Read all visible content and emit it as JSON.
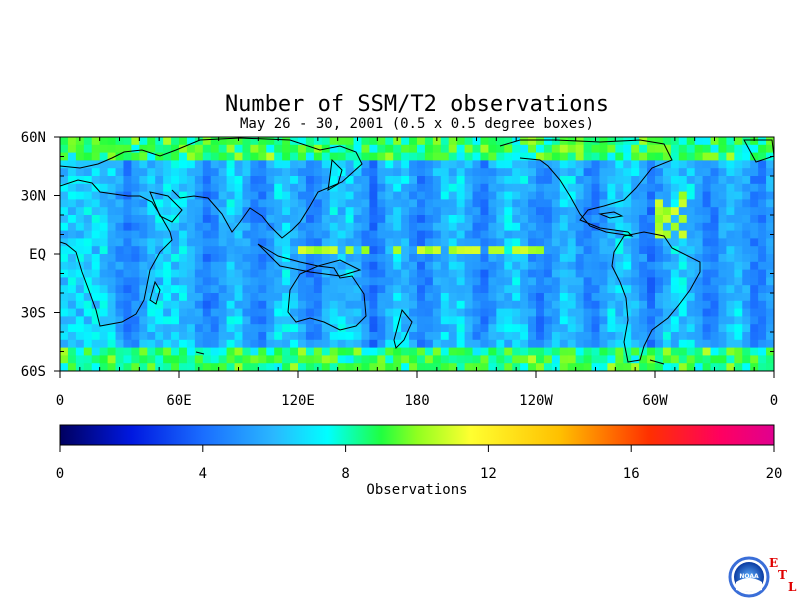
{
  "chart_data": {
    "type": "heatmap",
    "title": "Number of SSM/T2 observations",
    "subtitle": "May 26 - 30, 2001 (0.5 x 0.5 degree boxes)",
    "x_ticks": [
      "0",
      "60E",
      "120E",
      "180",
      "120W",
      "60W",
      "0"
    ],
    "y_ticks": [
      "60N",
      "30N",
      "EQ",
      "30S",
      "60S"
    ],
    "xlim": [
      0,
      360
    ],
    "ylim": [
      -60,
      60
    ],
    "colorbar": {
      "label": "Observations",
      "range": [
        0,
        20
      ],
      "ticks": [
        "0",
        "4",
        "8",
        "12",
        "16",
        "20"
      ],
      "stops": [
        {
          "v": 0,
          "c": "#000060"
        },
        {
          "v": 2,
          "c": "#0018e0"
        },
        {
          "v": 4,
          "c": "#1a6dff"
        },
        {
          "v": 6,
          "c": "#2ab8ff"
        },
        {
          "v": 7.5,
          "c": "#00ffff"
        },
        {
          "v": 9,
          "c": "#20ff40"
        },
        {
          "v": 10,
          "c": "#90ff20"
        },
        {
          "v": 11.5,
          "c": "#ffff30"
        },
        {
          "v": 14,
          "c": "#ffc000"
        },
        {
          "v": 16.5,
          "c": "#ff3000"
        },
        {
          "v": 18.5,
          "c": "#ff0060"
        },
        {
          "v": 20,
          "c": "#e00090"
        }
      ]
    },
    "swath_gaps_lon": [
      35,
      75,
      100,
      127,
      158,
      183,
      213,
      243,
      268,
      298,
      328,
      352
    ],
    "background_count": 6.5,
    "gap_count": 3.5,
    "high_count_features": [
      {
        "lon": [
          120,
          245
        ],
        "lat": [
          2,
          4
        ],
        "value": 10
      },
      {
        "lon": [
          0,
          30
        ],
        "lat": [
          48,
          56
        ],
        "value": 9
      },
      {
        "lon": [
          300,
          314
        ],
        "lat": [
          10,
          30
        ],
        "value": 10
      }
    ]
  },
  "logos": {
    "noaa": "NOAA",
    "etl": [
      "E",
      "T",
      "L"
    ]
  }
}
